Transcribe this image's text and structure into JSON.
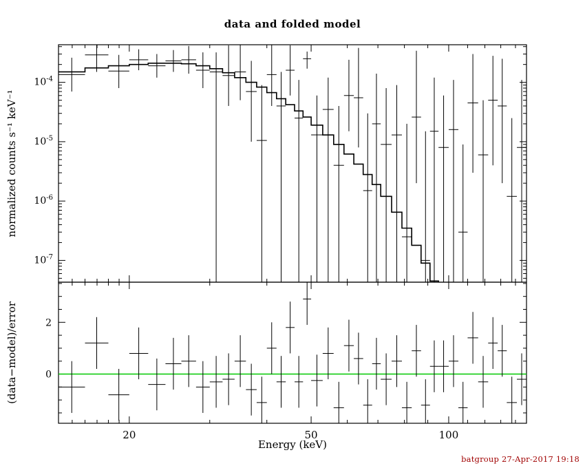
{
  "title": "data and folded model",
  "footer": "batgroup 27-Apr-2017 19:18",
  "colors": {
    "background": "#ffffff",
    "data": "#000000",
    "zero_line": "#00c800",
    "footer": "#a00000"
  },
  "chart_data": {
    "type": "scatter",
    "title": "data and folded model",
    "xlabel": "Energy (keV)",
    "ylabel_top": "normalized counts s⁻¹ keV⁻¹",
    "ylabel_bottom": "(data−model)/error",
    "x_scale": "log",
    "xlim": [
      14,
      148
    ],
    "xticks": [
      20,
      50,
      100
    ],
    "xticks_minor": [
      15,
      16,
      17,
      18,
      19,
      30,
      40,
      60,
      70,
      80,
      90,
      110,
      120,
      130,
      140
    ],
    "legend": "none",
    "top_panel": {
      "y_scale": "log",
      "ylim": [
        4.3e-08,
        0.00043
      ],
      "ytick_exponents": [
        -4,
        -5,
        -6,
        -7
      ],
      "model_label": "folded model (stepped line)",
      "model_bins": [
        [
          14,
          16,
          0.00015
        ],
        [
          16,
          18,
          0.000175
        ],
        [
          18,
          20,
          0.00019
        ],
        [
          20,
          22,
          0.0002
        ],
        [
          22,
          24,
          0.00021
        ],
        [
          24,
          26,
          0.00021
        ],
        [
          26,
          28,
          0.000205
        ],
        [
          28,
          30,
          0.00019
        ],
        [
          30,
          32,
          0.00017
        ],
        [
          32,
          34,
          0.000145
        ],
        [
          34,
          36,
          0.00012
        ],
        [
          36,
          38,
          0.0001
        ],
        [
          38,
          40,
          8.3e-05
        ],
        [
          40,
          42,
          6.7e-05
        ],
        [
          42,
          44,
          5.3e-05
        ],
        [
          44,
          46,
          4.2e-05
        ],
        [
          46,
          48,
          3.3e-05
        ],
        [
          48,
          50,
          2.6e-05
        ],
        [
          50,
          53,
          1.9e-05
        ],
        [
          53,
          56,
          1.3e-05
        ],
        [
          56,
          59,
          9e-06
        ],
        [
          59,
          62,
          6.2e-06
        ],
        [
          62,
          65,
          4.2e-06
        ],
        [
          65,
          68,
          2.8e-06
        ],
        [
          68,
          71,
          1.9e-06
        ],
        [
          71,
          75,
          1.2e-06
        ],
        [
          75,
          79,
          6.5e-07
        ],
        [
          79,
          83,
          3.5e-07
        ],
        [
          83,
          87,
          1.8e-07
        ],
        [
          87,
          91,
          9e-08
        ],
        [
          91,
          95,
          4.5e-08
        ]
      ]
    },
    "bottom_panel": {
      "y_scale": "linear",
      "ylim": [
        -1.9,
        3.55
      ],
      "yticks": [
        0,
        2
      ],
      "yticks_minor": [
        -1.5,
        -1,
        -0.5,
        0.5,
        1,
        1.5,
        2.5,
        3,
        3.5
      ],
      "residual_error_half_length": 1
    },
    "points_columns": [
      "e_lo",
      "e_hi",
      "rate",
      "rate_err_lo",
      "rate_err_hi",
      "residual"
    ],
    "points": [
      [
        14,
        16,
        0.000135,
        7e-05,
        0.00026,
        -0.5
      ],
      [
        16,
        18,
        0.00029,
        0.00015,
        0.00055,
        1.2
      ],
      [
        18,
        20,
        0.000155,
        8e-05,
        0.00029,
        -0.8
      ],
      [
        20,
        22,
        0.00024,
        0.00016,
        0.00036,
        0.8
      ],
      [
        22,
        24,
        0.00019,
        0.00012,
        0.0003,
        -0.4
      ],
      [
        24,
        26,
        0.00023,
        0.00015,
        0.00035,
        0.4
      ],
      [
        26,
        28,
        0.00024,
        0.00014,
        0.00041,
        0.5
      ],
      [
        28,
        30,
        0.00016,
        8e-05,
        0.00032,
        -0.5
      ],
      [
        30,
        32,
        0.00015,
        0,
        0.00032,
        -0.3
      ],
      [
        32,
        34,
        0.00013,
        4e-05,
        0.00042,
        -0.2
      ],
      [
        34,
        36,
        0.00015,
        5e-05,
        0.00045,
        0.5
      ],
      [
        36,
        38,
        7e-05,
        1e-05,
        0.00023,
        -0.6
      ],
      [
        38,
        40,
        1.05e-05,
        0,
        9e-05,
        -1.1
      ],
      [
        40,
        42,
        0.000135,
        4e-05,
        0.00044,
        1.0
      ],
      [
        42,
        44,
        4e-05,
        0,
        0.00015,
        -0.3
      ],
      [
        44,
        46,
        0.00016,
        6e-05,
        0.00042,
        1.8
      ],
      [
        46,
        48,
        2.5e-05,
        0,
        0.00011,
        -0.3
      ],
      [
        48,
        50,
        0.00025,
        0.00017,
        0.00033,
        2.9
      ],
      [
        50,
        53,
        1.3e-05,
        0,
        6e-05,
        -0.25
      ],
      [
        53,
        56,
        3.5e-05,
        0,
        0.00012,
        0.8
      ],
      [
        56,
        59,
        4e-06,
        0,
        4e-05,
        -1.3
      ],
      [
        59,
        62,
        6e-05,
        1.5e-05,
        0.00024,
        1.1
      ],
      [
        62,
        65,
        5.5e-05,
        8e-06,
        0.00038,
        0.6
      ],
      [
        65,
        68,
        1.5e-06,
        0,
        3e-05,
        -1.2
      ],
      [
        68,
        71,
        2e-05,
        0,
        0.00014,
        0.4
      ],
      [
        71,
        75,
        9e-06,
        0,
        8e-05,
        -0.2
      ],
      [
        75,
        79,
        1.3e-05,
        0,
        9e-05,
        0.5
      ],
      [
        79,
        83,
        2.5e-07,
        0,
        2e-05,
        -1.3
      ],
      [
        83,
        87,
        2.6e-05,
        2e-06,
        0.00034,
        0.9
      ],
      [
        87,
        91,
        1e-07,
        0,
        1.5e-05,
        -1.2
      ],
      [
        91,
        95,
        1.5e-05,
        0,
        0.00012,
        0.3
      ],
      [
        95,
        100,
        8e-06,
        0,
        6e-05,
        0.3
      ],
      [
        100,
        105,
        1.6e-05,
        0,
        0.00011,
        0.5
      ],
      [
        105,
        110,
        3e-07,
        0,
        9e-06,
        -1.3
      ],
      [
        110,
        116,
        4.5e-05,
        3e-06,
        0.0003,
        1.4
      ],
      [
        116,
        122,
        6e-06,
        0,
        5e-05,
        -0.3
      ],
      [
        122,
        128,
        5e-05,
        4e-06,
        0.00028,
        1.2
      ],
      [
        128,
        134,
        4e-05,
        2e-06,
        0.00025,
        0.9
      ],
      [
        134,
        141,
        1.2e-06,
        0,
        2.5e-05,
        -1.1
      ],
      [
        141,
        148,
        8e-06,
        0,
        0.00011,
        -0.2
      ]
    ]
  }
}
